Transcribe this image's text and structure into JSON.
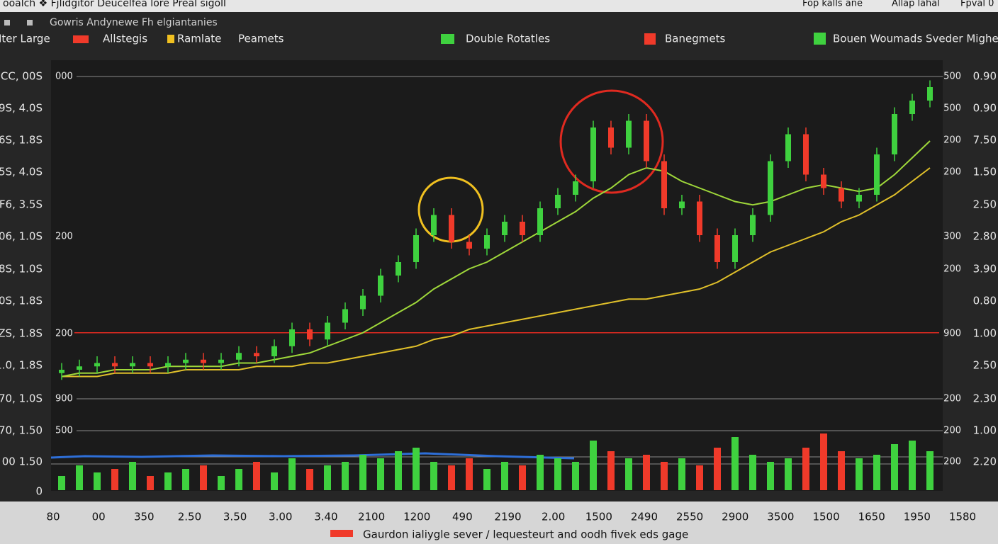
{
  "header": {
    "title": "ooalch ❖ Fjlidgitor Deucelfea lore Preal sigoll",
    "right": [
      "Fop kalls ane",
      "Allap  lahal",
      "Fpval 0"
    ],
    "subtitle": "Gowris Andynewe Fh elgiantanies"
  },
  "legend": [
    "Iter Large",
    "Allstegis",
    "Ramlate",
    "Peamets",
    "Double Rotatles",
    "Banegmets",
    "Bouen Woumads  Sveder Mighel"
  ],
  "left_labels": [
    "CC, 00S",
    "9S, 4.0S",
    "6S, 1.8S",
    "5S, 4.0S",
    "F6, 3.5S",
    "06, 1.0S",
    "8S, 1.0S",
    "0S, 1.8S",
    "ZS, 1.8S",
    "1.0, 1.8S",
    "70, 1.0S",
    "70, 1.50",
    "00 1.50",
    "0"
  ],
  "inner_left_labels": [
    "000",
    "200",
    "200",
    "900",
    "500"
  ],
  "inner_right_labels": [
    "500",
    "500",
    "200",
    "200",
    "300",
    "200",
    "900",
    "200",
    "200",
    "200"
  ],
  "right_labels": [
    "0.90",
    "0.90",
    "7.50",
    "1.50",
    "2.50",
    "2.80",
    "3.90",
    "0.80",
    "1.00",
    "2.50",
    "2.30",
    "1.00",
    "2.20"
  ],
  "bottom_labels": [
    "80",
    "00",
    "350",
    "2.50",
    "3.50",
    "3.00",
    "3.40",
    "2100",
    "1200",
    "490",
    "2190",
    "2.00",
    "1500",
    "2490",
    "2550",
    "2900",
    "3500",
    "1500",
    "1650",
    "1950",
    "1580"
  ],
  "footer": "Gaurdon ialiygle sever / lequesteurt and oodh fivek eds gage",
  "chart": {
    "ylim": [
      0,
      100
    ],
    "vlim": [
      0,
      100
    ],
    "up_color": "#3fd13f",
    "down_color": "#f03a2a",
    "level": 19,
    "level_color": "#e02a20",
    "open": [
      7,
      8,
      9,
      10,
      9,
      10,
      9,
      10,
      11,
      10,
      11,
      13,
      12,
      15,
      20,
      17,
      22,
      26,
      30,
      36,
      40,
      48,
      54,
      46,
      44,
      48,
      52,
      48,
      56,
      60,
      64,
      80,
      74,
      82,
      70,
      56,
      58,
      48,
      40,
      48,
      54,
      70,
      78,
      66,
      62,
      58,
      60,
      72,
      84,
      88
    ],
    "high": [
      10,
      11,
      12,
      12,
      12,
      12,
      12,
      13,
      13,
      13,
      15,
      15,
      17,
      22,
      22,
      24,
      28,
      32,
      38,
      42,
      50,
      56,
      56,
      48,
      50,
      54,
      54,
      58,
      62,
      66,
      82,
      82,
      84,
      84,
      72,
      60,
      60,
      50,
      50,
      56,
      72,
      80,
      80,
      68,
      64,
      62,
      74,
      86,
      90,
      94
    ],
    "low": [
      5,
      6,
      7,
      7,
      7,
      7,
      7,
      8,
      8,
      8,
      9,
      10,
      10,
      13,
      15,
      15,
      20,
      24,
      28,
      34,
      38,
      46,
      44,
      42,
      42,
      46,
      46,
      46,
      54,
      58,
      62,
      72,
      72,
      68,
      54,
      54,
      46,
      38,
      38,
      46,
      52,
      68,
      64,
      60,
      56,
      56,
      58,
      70,
      82,
      86
    ],
    "close": [
      8,
      9,
      10,
      9,
      10,
      9,
      10,
      11,
      10,
      11,
      13,
      12,
      15,
      20,
      17,
      22,
      26,
      30,
      36,
      40,
      48,
      54,
      46,
      44,
      48,
      52,
      48,
      56,
      60,
      64,
      80,
      74,
      82,
      70,
      56,
      58,
      48,
      40,
      48,
      54,
      70,
      78,
      66,
      62,
      58,
      60,
      72,
      84,
      88,
      92
    ],
    "ma1": [
      6,
      7,
      7,
      8,
      8,
      8,
      9,
      9,
      9,
      9,
      10,
      10,
      11,
      12,
      13,
      15,
      17,
      19,
      22,
      25,
      28,
      32,
      35,
      38,
      40,
      43,
      46,
      49,
      52,
      55,
      59,
      62,
      66,
      68,
      67,
      64,
      62,
      60,
      58,
      57,
      58,
      60,
      62,
      63,
      62,
      61,
      62,
      66,
      71,
      76
    ],
    "ma1_color": "#9fd83a",
    "ma2": [
      6,
      6,
      6,
      7,
      7,
      7,
      7,
      8,
      8,
      8,
      8,
      9,
      9,
      9,
      10,
      10,
      11,
      12,
      13,
      14,
      15,
      17,
      18,
      20,
      21,
      22,
      23,
      24,
      25,
      26,
      27,
      28,
      29,
      29,
      30,
      31,
      32,
      34,
      37,
      40,
      43,
      45,
      47,
      49,
      52,
      54,
      57,
      60,
      64,
      68
    ],
    "ma2_color": "#e0c02a",
    "volume": [
      20,
      35,
      25,
      30,
      40,
      20,
      25,
      30,
      35,
      20,
      30,
      40,
      25,
      45,
      30,
      35,
      40,
      50,
      45,
      55,
      60,
      40,
      35,
      45,
      30,
      40,
      35,
      50,
      45,
      40,
      70,
      55,
      45,
      50,
      40,
      45,
      35,
      60,
      75,
      50,
      40,
      45,
      60,
      80,
      55,
      45,
      50,
      65,
      70,
      55
    ]
  }
}
